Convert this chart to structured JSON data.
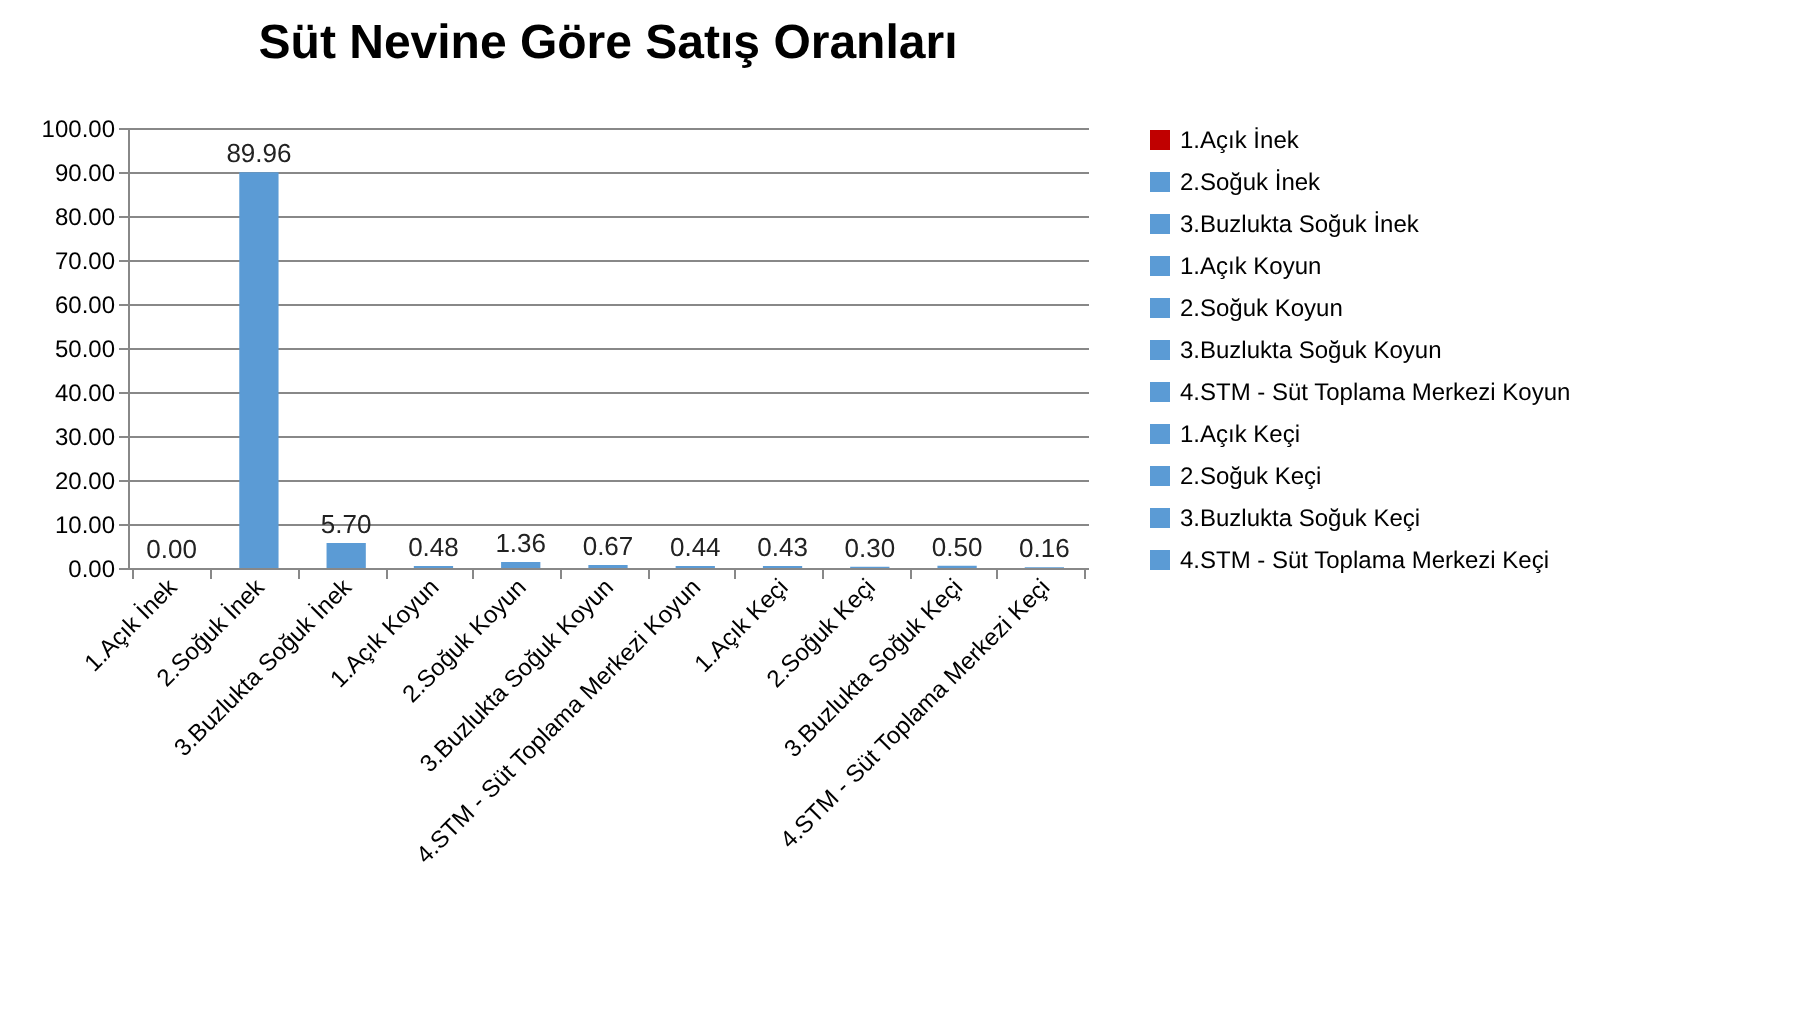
{
  "chart_data": {
    "type": "bar",
    "title": "Süt Nevine Göre Satış Oranları",
    "categories": [
      "1.Açık İnek",
      "2.Soğuk İnek",
      "3.Buzlukta Soğuk İnek",
      "1.Açık Koyun",
      "2.Soğuk Koyun",
      "3.Buzlukta Soğuk Koyun",
      "4.STM - Süt Toplama Merkezi Koyun",
      "1.Açık Keçi",
      "2.Soğuk Keçi",
      "3.Buzlukta Soğuk Keçi",
      "4.STM - Süt Toplama Merkezi Keçi"
    ],
    "series": [
      {
        "name": "1.Açık İnek",
        "color": "#c00000",
        "values": [
          0,
          null,
          null,
          null,
          null,
          null,
          null,
          null,
          null,
          null,
          null
        ],
        "value_labels": [
          "0.00",
          null,
          null,
          null,
          null,
          null,
          null,
          null,
          null,
          null,
          null
        ]
      },
      {
        "name": "2.Soğuk İnek",
        "color": "#5b9bd5",
        "values": [
          null,
          89.96,
          null,
          null,
          null,
          null,
          null,
          null,
          null,
          null,
          null
        ],
        "value_labels": [
          null,
          "89.96",
          null,
          null,
          null,
          null,
          null,
          null,
          null,
          null,
          null
        ]
      },
      {
        "name": "3.Buzlukta Soğuk İnek",
        "color": "#5b9bd5",
        "values": [
          null,
          null,
          5.7,
          null,
          null,
          null,
          null,
          null,
          null,
          null,
          null
        ],
        "value_labels": [
          null,
          null,
          "5.70",
          null,
          null,
          null,
          null,
          null,
          null,
          null,
          null
        ]
      },
      {
        "name": "1.Açık Koyun",
        "color": "#5b9bd5",
        "values": [
          null,
          null,
          null,
          0.48,
          null,
          null,
          null,
          null,
          null,
          null,
          null
        ],
        "value_labels": [
          null,
          null,
          null,
          "0.48",
          null,
          null,
          null,
          null,
          null,
          null,
          null
        ]
      },
      {
        "name": "2.Soğuk Koyun",
        "color": "#5b9bd5",
        "values": [
          null,
          null,
          null,
          null,
          1.36,
          null,
          null,
          null,
          null,
          null,
          null
        ],
        "value_labels": [
          null,
          null,
          null,
          null,
          "1.36",
          null,
          null,
          null,
          null,
          null,
          null
        ]
      },
      {
        "name": "3.Buzlukta Soğuk Koyun",
        "color": "#5b9bd5",
        "values": [
          null,
          null,
          null,
          null,
          null,
          0.67,
          null,
          null,
          null,
          null,
          null
        ],
        "value_labels": [
          null,
          null,
          null,
          null,
          null,
          "0.67",
          null,
          null,
          null,
          null,
          null
        ]
      },
      {
        "name": "4.STM - Süt Toplama Merkezi Koyun",
        "color": "#5b9bd5",
        "values": [
          null,
          null,
          null,
          null,
          null,
          null,
          0.44,
          null,
          null,
          null,
          null
        ],
        "value_labels": [
          null,
          null,
          null,
          null,
          null,
          null,
          "0.44",
          null,
          null,
          null,
          null
        ]
      },
      {
        "name": "1.Açık Keçi",
        "color": "#5b9bd5",
        "values": [
          null,
          null,
          null,
          null,
          null,
          null,
          null,
          0.43,
          null,
          null,
          null
        ],
        "value_labels": [
          null,
          null,
          null,
          null,
          null,
          null,
          null,
          "0.43",
          null,
          null,
          null
        ]
      },
      {
        "name": "2.Soğuk Keçi",
        "color": "#5b9bd5",
        "values": [
          null,
          null,
          null,
          null,
          null,
          null,
          null,
          null,
          0.3,
          null,
          null
        ],
        "value_labels": [
          null,
          null,
          null,
          null,
          null,
          null,
          null,
          null,
          "0.30",
          null,
          null
        ]
      },
      {
        "name": "3.Buzlukta Soğuk Keçi",
        "color": "#5b9bd5",
        "values": [
          null,
          null,
          null,
          null,
          null,
          null,
          null,
          null,
          null,
          0.5,
          null
        ],
        "value_labels": [
          null,
          null,
          null,
          null,
          null,
          null,
          null,
          null,
          null,
          "0.50",
          null
        ]
      },
      {
        "name": "4.STM - Süt Toplama Merkezi Keçi",
        "color": "#5b9bd5",
        "values": [
          null,
          null,
          null,
          null,
          null,
          null,
          null,
          null,
          null,
          null,
          0.16
        ],
        "value_labels": [
          null,
          null,
          null,
          null,
          null,
          null,
          null,
          null,
          null,
          null,
          "0.16"
        ]
      }
    ],
    "ylim": [
      0,
      100
    ],
    "yticks": [
      {
        "value": 0,
        "label": "0.00"
      },
      {
        "value": 10,
        "label": "10.00"
      },
      {
        "value": 20,
        "label": "20.00"
      },
      {
        "value": 30,
        "label": "30.00"
      },
      {
        "value": 40,
        "label": "40.00"
      },
      {
        "value": 50,
        "label": "50.00"
      },
      {
        "value": 60,
        "label": "60.00"
      },
      {
        "value": 70,
        "label": "70.00"
      },
      {
        "value": 80,
        "label": "80.00"
      },
      {
        "value": 90,
        "label": "90.00"
      },
      {
        "value": 100,
        "label": "100.00"
      }
    ],
    "grid": "y",
    "legend": "right"
  }
}
